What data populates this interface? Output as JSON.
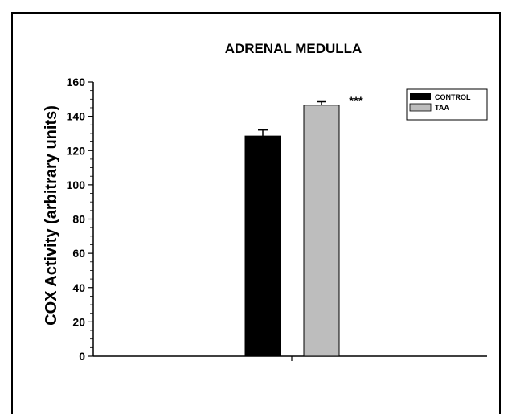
{
  "chart_data": {
    "type": "bar",
    "title": "ADRENAL MEDULLA",
    "xlabel": "",
    "ylabel": "COX Activity (arbitrary units)",
    "ylim": [
      0,
      160
    ],
    "yticks": [
      0,
      20,
      40,
      60,
      80,
      100,
      120,
      140,
      160
    ],
    "categories": [
      ""
    ],
    "series": [
      {
        "name": "CONTROL",
        "values": [
          128.5
        ],
        "error": [
          3.5
        ],
        "color": "#000000"
      },
      {
        "name": "TAA",
        "values": [
          146.5
        ],
        "error": [
          2.0
        ],
        "color": "#bdbdbd"
      }
    ],
    "annotations": [
      {
        "text": "***",
        "series": "TAA"
      }
    ],
    "legend": "top-right",
    "grid": false
  }
}
